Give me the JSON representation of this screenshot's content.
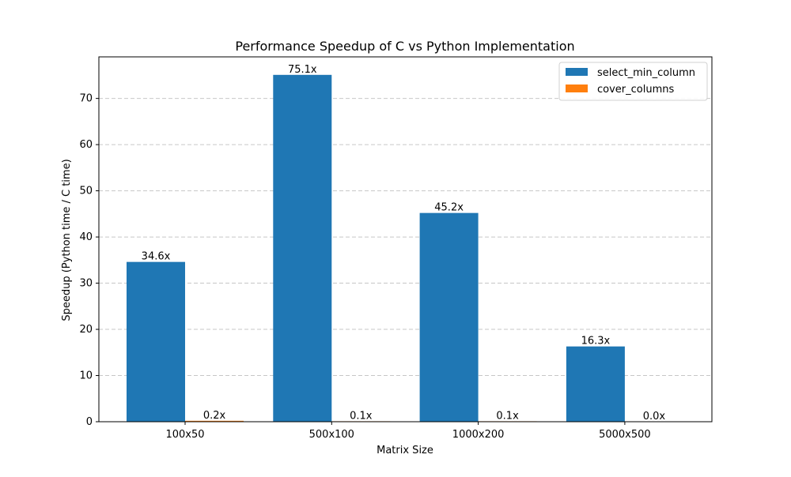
{
  "chart_data": {
    "type": "bar",
    "title": "Performance Speedup of C vs Python Implementation",
    "xlabel": "Matrix Size",
    "ylabel": "Speedup (Python time / C time)",
    "categories": [
      "100x50",
      "500x100",
      "1000x200",
      "5000x500"
    ],
    "series": [
      {
        "name": "select_min_column",
        "color": "#1f77b4",
        "values": [
          34.6,
          75.1,
          45.2,
          16.3
        ],
        "labels": [
          "34.6x",
          "75.1x",
          "45.2x",
          "16.3x"
        ]
      },
      {
        "name": "cover_columns",
        "color": "#ff7f0e",
        "values": [
          0.2,
          0.1,
          0.1,
          0.0
        ],
        "labels": [
          "0.2x",
          "0.1x",
          "0.1x",
          "0.0x"
        ]
      }
    ],
    "ylim": [
      0,
      79
    ],
    "yticks": [
      0,
      10,
      20,
      30,
      40,
      50,
      60,
      70
    ],
    "grid": "y-dashed",
    "legend": "top-right"
  }
}
